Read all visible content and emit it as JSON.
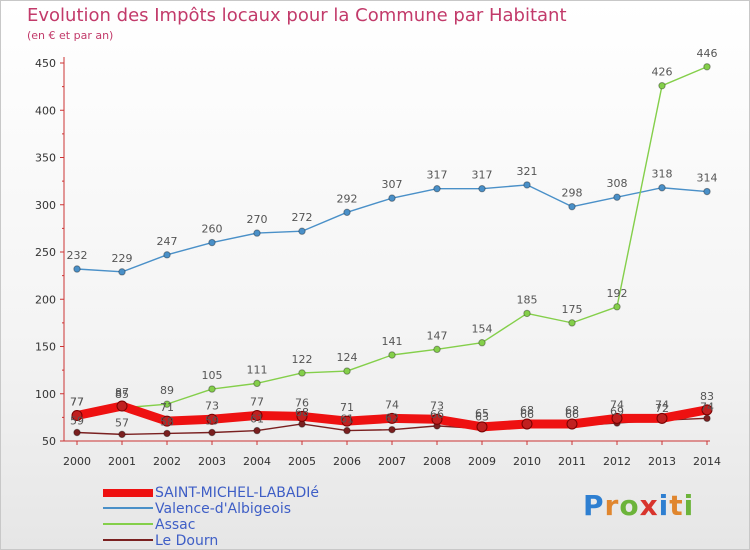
{
  "header": {
    "title": "Evolution des Impôts locaux pour la Commune par Habitant",
    "subtitle": "(en € et par an)"
  },
  "logo": {
    "letters": [
      "P",
      "r",
      "o",
      "x",
      "i",
      "t",
      "i"
    ],
    "colors": [
      "#2e7fd1",
      "#e0862e",
      "#6cb43a",
      "#d8342c",
      "#2e7fd1",
      "#e0862e",
      "#6cb43a"
    ]
  },
  "chart_data": {
    "type": "line",
    "title": "Evolution des Impôts locaux pour la Commune par Habitant",
    "subtitle": "(en € et par an)",
    "x": [
      2000,
      2001,
      2002,
      2003,
      2004,
      2005,
      2006,
      2007,
      2008,
      2009,
      2010,
      2011,
      2012,
      2013,
      2014
    ],
    "ylim": [
      50,
      450
    ],
    "yticks": [
      50,
      100,
      150,
      200,
      250,
      300,
      350,
      400,
      450
    ],
    "grid": false,
    "legend_position": "bottom-left",
    "series": [
      {
        "name": "SAINT-MICHEL-LABADIé",
        "color": "#ee1111",
        "thick": true,
        "values": [
          77,
          87,
          71,
          73,
          77,
          76,
          71,
          74,
          73,
          65,
          68,
          68,
          74,
          74,
          83
        ],
        "labels": [
          "77",
          "87",
          "71",
          "73",
          "77",
          "76",
          "71",
          "74",
          "73",
          "65",
          "68",
          "68",
          "74",
          "74",
          "83"
        ]
      },
      {
        "name": "Valence-d'Albigeois",
        "color": "#4a90c8",
        "thick": false,
        "values": [
          232,
          229,
          247,
          260,
          270,
          272,
          292,
          307,
          317,
          317,
          321,
          298,
          308,
          318,
          314
        ],
        "labels": [
          "232",
          "229",
          "247",
          "260",
          "270",
          "272",
          "292",
          "307",
          "317",
          "317",
          "321",
          "298",
          "308",
          "318",
          "314"
        ]
      },
      {
        "name": "Assac",
        "color": "#84cf4a",
        "thick": false,
        "values": [
          77,
          85,
          89,
          105,
          111,
          122,
          124,
          141,
          147,
          154,
          185,
          175,
          192,
          426,
          446
        ],
        "labels": [
          "77",
          "85",
          "89",
          "105",
          "111",
          "122",
          "124",
          "141",
          "147",
          "154",
          "185",
          "175",
          "192",
          "426",
          "446"
        ]
      },
      {
        "name": "Le Dourn",
        "color": "#7a2020",
        "thick": false,
        "values": [
          59,
          57,
          58,
          59,
          61,
          68,
          61,
          62,
          66,
          63,
          66,
          66,
          69,
          72,
          74
        ],
        "labels": [
          "59",
          "57",
          "58",
          "59",
          "61",
          "68",
          "61",
          "62",
          "66",
          "63",
          "66",
          "66",
          "69",
          "72",
          "74"
        ]
      }
    ]
  }
}
